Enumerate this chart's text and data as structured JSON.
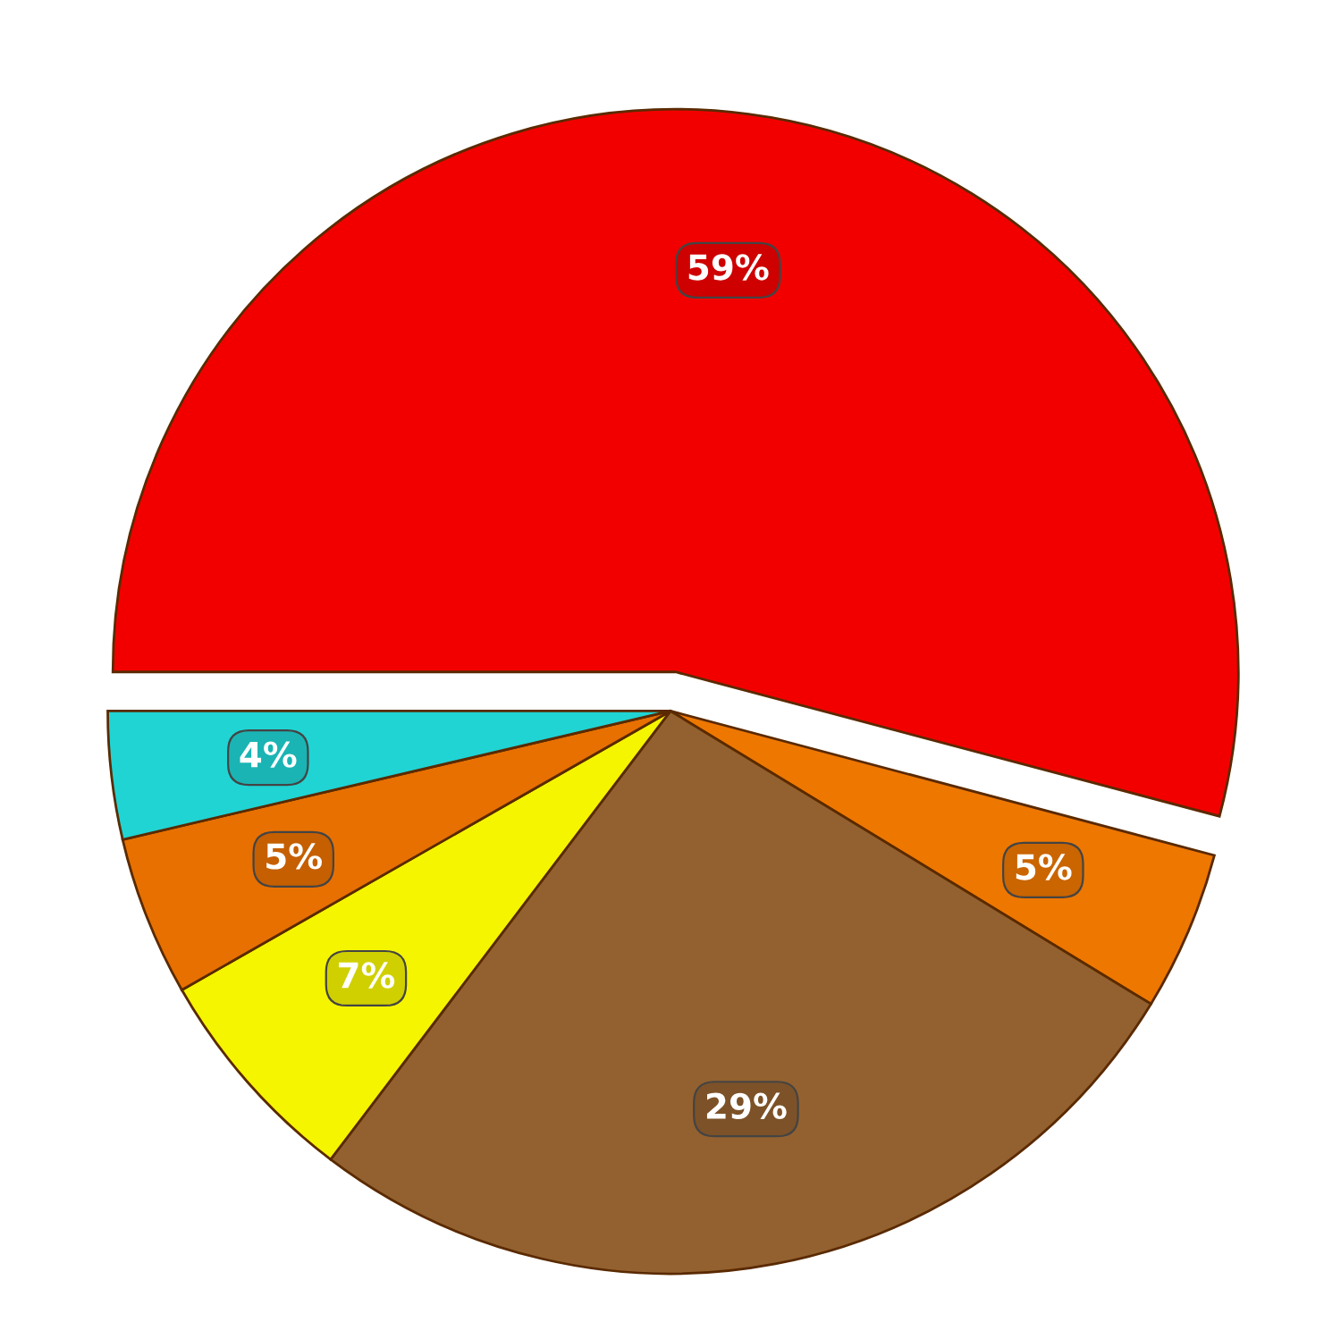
{
  "chart_data": {
    "type": "pie",
    "categories": [
      null,
      null,
      null,
      null,
      null,
      null
    ],
    "values": [
      59,
      5,
      29,
      7,
      5,
      4
    ],
    "colors": [
      "#f20000",
      "#ee7700",
      "#93612f",
      "#f5f500",
      "#e87000",
      "#20d4d4"
    ],
    "value_labels": [
      "59%",
      "5%",
      "29%",
      "7%",
      "5%",
      "4%"
    ]
  }
}
